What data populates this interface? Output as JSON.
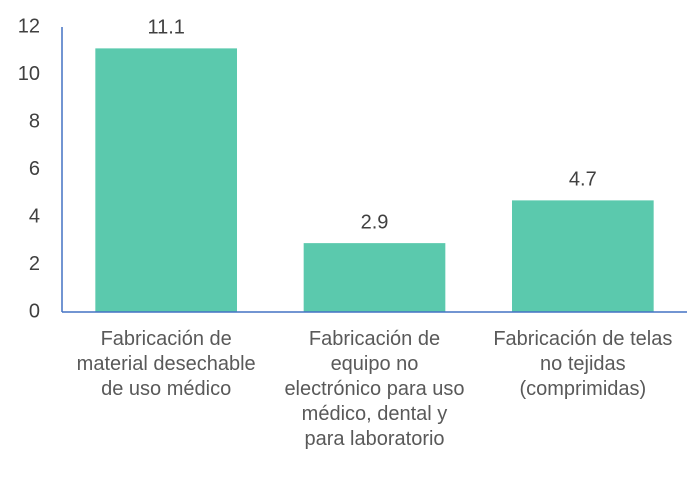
{
  "chart_data": {
    "type": "bar",
    "categories": [
      "Fabricación de material desechable de uso médico",
      "Fabricación de equipo no electrónico para uso médico, dental y para laboratorio",
      "Fabricación de telas no tejidas (comprimidas)"
    ],
    "values": [
      11.1,
      2.9,
      4.7
    ],
    "color": "#5bc9ad",
    "axis_color": "#4472c4",
    "ylim": [
      0,
      12
    ],
    "yticks": [
      0,
      2,
      4,
      6,
      8,
      10,
      12
    ],
    "grid": false
  }
}
